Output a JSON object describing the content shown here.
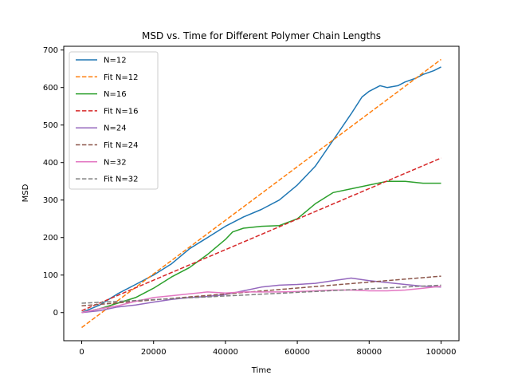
{
  "chart_data": {
    "type": "line",
    "title": "MSD vs. Time for Different Polymer Chain Lengths",
    "xlabel": "Time",
    "ylabel": "MSD",
    "xlim": [
      -5000,
      105000
    ],
    "ylim": [
      -75,
      710
    ],
    "xticks": [
      0,
      20000,
      40000,
      60000,
      80000,
      100000
    ],
    "yticks": [
      0,
      100,
      200,
      300,
      400,
      500,
      600,
      700
    ],
    "grid": false,
    "legend_position": "top-left",
    "series": [
      {
        "name": "N=12",
        "color": "#1f77b4",
        "style": "solid",
        "x": [
          0,
          5000,
          10000,
          15000,
          20000,
          25000,
          30000,
          35000,
          40000,
          45000,
          50000,
          55000,
          60000,
          65000,
          70000,
          75000,
          78000,
          80000,
          83000,
          85000,
          88000,
          90000,
          93000,
          95000,
          98000,
          100000
        ],
        "y": [
          0,
          20,
          50,
          75,
          100,
          130,
          170,
          200,
          230,
          255,
          275,
          300,
          340,
          390,
          460,
          530,
          575,
          590,
          605,
          600,
          605,
          615,
          625,
          635,
          645,
          655
        ]
      },
      {
        "name": "Fit N=12",
        "color": "#ff7f0e",
        "style": "dashed",
        "x": [
          0,
          100000
        ],
        "y": [
          -40,
          675
        ]
      },
      {
        "name": "N=16",
        "color": "#2ca02c",
        "style": "solid",
        "x": [
          0,
          5000,
          10000,
          15000,
          20000,
          25000,
          30000,
          35000,
          40000,
          42000,
          45000,
          50000,
          55000,
          60000,
          65000,
          70000,
          75000,
          80000,
          85000,
          90000,
          95000,
          100000
        ],
        "y": [
          0,
          10,
          25,
          40,
          65,
          95,
          120,
          155,
          195,
          215,
          225,
          230,
          232,
          250,
          290,
          320,
          330,
          340,
          350,
          350,
          345,
          345
        ]
      },
      {
        "name": "Fit N=16",
        "color": "#d62728",
        "style": "dashed",
        "x": [
          0,
          100000
        ],
        "y": [
          5,
          412
        ]
      },
      {
        "name": "N=24",
        "color": "#9467bd",
        "style": "solid",
        "x": [
          0,
          5000,
          10000,
          15000,
          20000,
          25000,
          30000,
          35000,
          40000,
          45000,
          50000,
          55000,
          60000,
          65000,
          70000,
          75000,
          80000,
          85000,
          90000,
          95000,
          100000
        ],
        "y": [
          0,
          5,
          15,
          20,
          28,
          35,
          40,
          43,
          48,
          58,
          68,
          73,
          75,
          78,
          85,
          92,
          85,
          80,
          75,
          70,
          68
        ]
      },
      {
        "name": "Fit N=24",
        "color": "#8c564b",
        "style": "dashed",
        "x": [
          0,
          100000
        ],
        "y": [
          18,
          97
        ]
      },
      {
        "name": "N=32",
        "color": "#e377c2",
        "style": "solid",
        "x": [
          0,
          5000,
          10000,
          15000,
          20000,
          25000,
          30000,
          35000,
          40000,
          45000,
          50000,
          55000,
          60000,
          65000,
          70000,
          75000,
          80000,
          85000,
          90000,
          95000,
          100000
        ],
        "y": [
          0,
          10,
          18,
          30,
          40,
          45,
          50,
          55,
          52,
          55,
          55,
          55,
          56,
          58,
          60,
          60,
          58,
          58,
          60,
          65,
          70
        ]
      },
      {
        "name": "Fit N=32",
        "color": "#7f7f7f",
        "style": "dashed",
        "x": [
          0,
          100000
        ],
        "y": [
          25,
          73
        ]
      }
    ]
  }
}
